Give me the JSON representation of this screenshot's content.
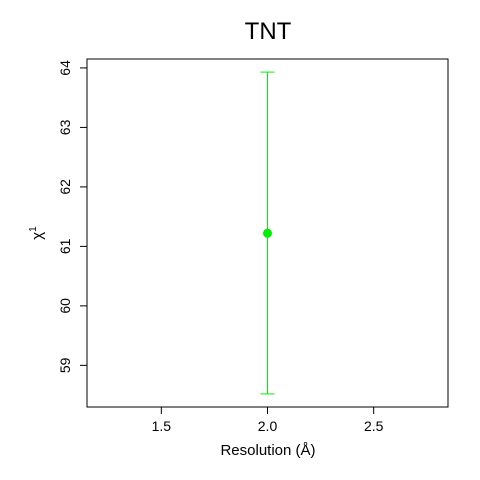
{
  "chart_data": {
    "type": "scatter",
    "title": "TNT",
    "xlabel": "Resolution (Å)",
    "ylabel_symbol": "χ",
    "ylabel_superscript": "1",
    "xlim": [
      1.15,
      2.85
    ],
    "ylim": [
      58.3,
      64.15
    ],
    "xticks": [
      1.5,
      2.0,
      2.5
    ],
    "xtick_labels": [
      "1.5",
      "2.0",
      "2.5"
    ],
    "yticks": [
      59,
      60,
      61,
      62,
      63,
      64
    ],
    "ytick_labels": [
      "59",
      "60",
      "61",
      "62",
      "63",
      "64"
    ],
    "grid": false,
    "points": [
      {
        "x": 2.0,
        "y": 61.22,
        "error_low": 58.52,
        "error_high": 63.93
      }
    ],
    "colors": {
      "point": "#00ee00",
      "errorbar": "#00ee00",
      "axis": "#000000"
    }
  }
}
